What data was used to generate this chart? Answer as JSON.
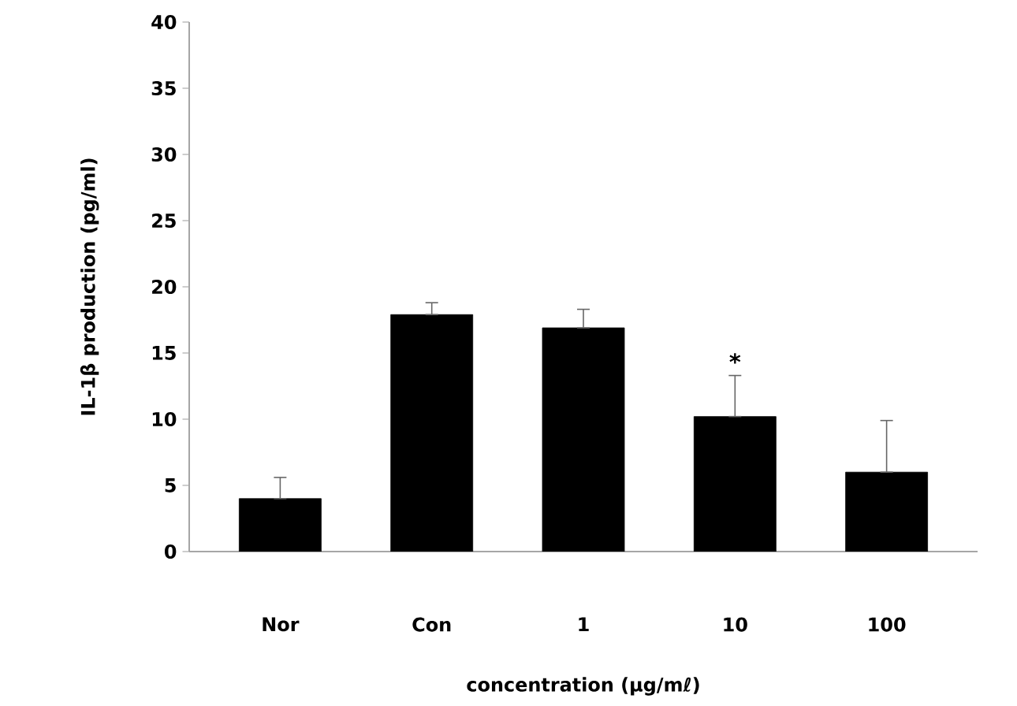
{
  "chart_data": {
    "type": "bar",
    "ylabel": "IL-1β production (pg/ml)",
    "xlabel": "concentration (μg/mℓ)",
    "categories": [
      "Nor",
      "Con",
      "1",
      "10",
      "100"
    ],
    "values": [
      4.0,
      17.9,
      16.9,
      10.2,
      6.0
    ],
    "errors": [
      [
        4.0,
        5.6
      ],
      [
        17.9,
        18.8
      ],
      [
        16.9,
        18.3
      ],
      [
        10.2,
        13.3
      ],
      [
        6.0,
        9.9
      ]
    ],
    "color": "#000000",
    "ylim": [
      0,
      40
    ],
    "yticks": [
      0,
      5,
      10,
      15,
      20,
      25,
      30,
      35,
      40
    ],
    "annotations": [
      {
        "text": "*",
        "x": "10",
        "y": 13.3
      }
    ],
    "grid": false
  }
}
